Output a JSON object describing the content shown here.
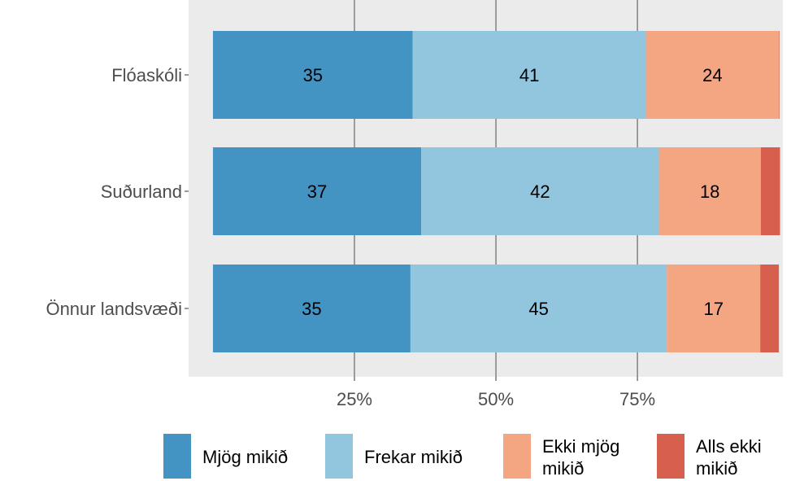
{
  "chart_data": {
    "type": "bar",
    "orientation": "horizontal",
    "stacked": true,
    "categories": [
      "Flóaskóli",
      "Suðurland",
      "Önnur landsvæði"
    ],
    "series": [
      {
        "name": "Mjög mikið",
        "color": "#4393c3",
        "values": [
          35.3,
          36.8,
          34.9
        ],
        "labels": [
          "35",
          "37",
          "35"
        ]
      },
      {
        "name": "Frekar mikið",
        "color": "#92c5de",
        "values": [
          41.2,
          42.0,
          45.3
        ],
        "labels": [
          "41",
          "42",
          "45"
        ]
      },
      {
        "name": "Ekki mjög mikið",
        "color": "#f4a582",
        "values": [
          23.5,
          18.0,
          16.5
        ],
        "labels": [
          "24",
          "18",
          "17"
        ]
      },
      {
        "name": "Alls ekki mikið",
        "color": "#d6604d",
        "values": [
          0.1,
          3.4,
          3.3
        ],
        "labels": [
          "",
          "",
          ""
        ]
      }
    ],
    "xlim": [
      -4.3,
      100.7
    ],
    "xticks": [
      25,
      50,
      75
    ],
    "xtick_labels": [
      "25%",
      "50%",
      "75%"
    ],
    "grid": true,
    "legend_position": "bottom",
    "title": "",
    "xlabel": "",
    "ylabel": ""
  }
}
